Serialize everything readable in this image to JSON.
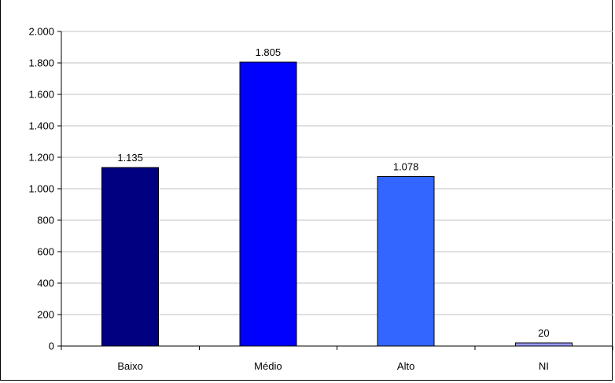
{
  "chart_data": {
    "type": "bar",
    "title": "",
    "xlabel": "",
    "ylabel": "",
    "categories": [
      "Baixo",
      "Médio",
      "Alto",
      "NI"
    ],
    "values": [
      1135,
      1805,
      1078,
      20
    ],
    "value_labels": [
      "1.135",
      "1.805",
      "1.078",
      "20"
    ],
    "colors": [
      "#000080",
      "#0000ff",
      "#3366ff",
      "#9999ff"
    ],
    "ylim": [
      0,
      2000
    ],
    "yticks": [
      0,
      200,
      400,
      600,
      800,
      1000,
      1200,
      1400,
      1600,
      1800,
      2000
    ],
    "ytick_labels": [
      "0",
      "200",
      "400",
      "600",
      "800",
      "1.000",
      "1.200",
      "1.400",
      "1.600",
      "1.800",
      "2.000"
    ],
    "grid": true,
    "legend": "none"
  }
}
